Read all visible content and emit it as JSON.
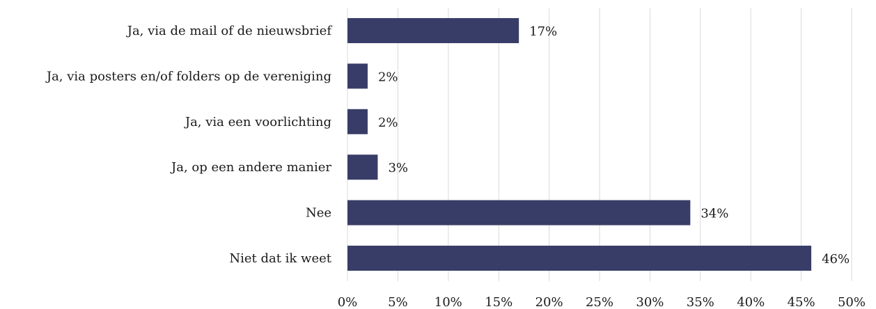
{
  "chart_data": {
    "type": "bar",
    "orientation": "horizontal",
    "categories": [
      "Ja, via de mail of de nieuwsbrief",
      "Ja, via posters en/of folders op de vereniging",
      "Ja, via een voorlichting",
      "Ja, op een andere manier",
      "Nee",
      "Niet dat ik weet"
    ],
    "values": [
      17,
      2,
      2,
      3,
      34,
      46
    ],
    "value_labels": [
      "17%",
      "2%",
      "2%",
      "3%",
      "34%",
      "46%"
    ],
    "xlim": [
      0,
      50
    ],
    "x_ticks": [
      0,
      5,
      10,
      15,
      20,
      25,
      30,
      35,
      40,
      45,
      50
    ],
    "x_tick_labels": [
      "0%",
      "5%",
      "10%",
      "15%",
      "20%",
      "25%",
      "30%",
      "35%",
      "40%",
      "45%",
      "50%"
    ],
    "title": "",
    "xlabel": "",
    "ylabel": "",
    "grid": "vertical",
    "legend": "none",
    "bar_color": "#383d68"
  }
}
